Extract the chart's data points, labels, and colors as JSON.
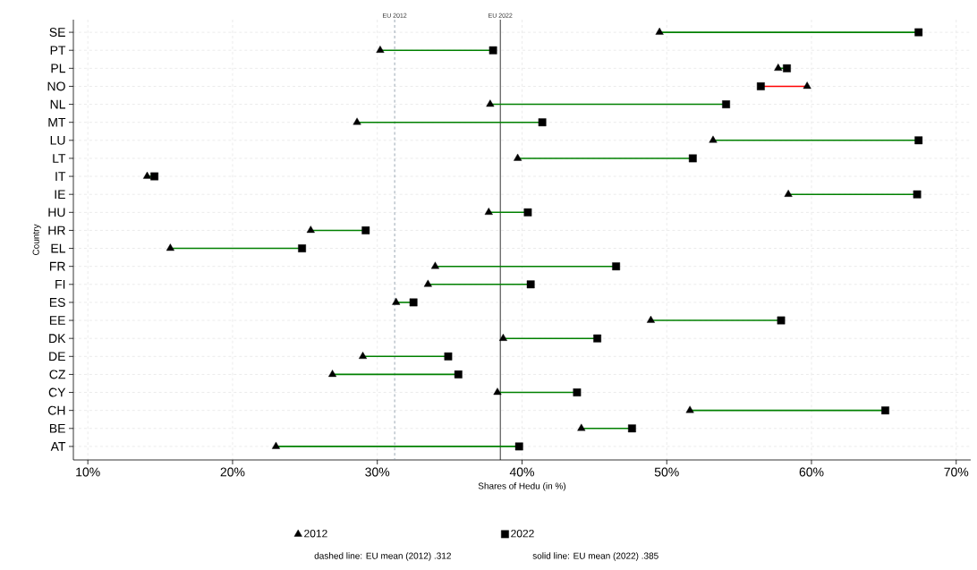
{
  "chart_data": {
    "type": "scatter",
    "orientation": "horizontal",
    "xlabel": "Shares of Hedu (in %)",
    "ylabel": "Country",
    "categories": [
      "SE",
      "PT",
      "PL",
      "NO",
      "NL",
      "MT",
      "LU",
      "LT",
      "IT",
      "IE",
      "HU",
      "HR",
      "EL",
      "FR",
      "FI",
      "ES",
      "EE",
      "DK",
      "DE",
      "CZ",
      "CY",
      "CH",
      "BE",
      "AT"
    ],
    "series": [
      {
        "name": "2012",
        "marker": "triangle",
        "color": "#000000",
        "values": [
          49.5,
          30.2,
          57.7,
          59.7,
          37.8,
          28.6,
          53.2,
          39.7,
          14.1,
          58.4,
          37.7,
          25.4,
          15.7,
          34.0,
          33.5,
          31.3,
          48.9,
          38.7,
          29.0,
          26.9,
          38.3,
          51.6,
          44.1,
          23.0
        ]
      },
      {
        "name": "2022",
        "marker": "square",
        "color": "#000000",
        "values": [
          67.4,
          38.0,
          58.3,
          56.5,
          54.1,
          41.4,
          67.4,
          51.8,
          14.6,
          67.3,
          40.4,
          29.2,
          24.8,
          46.5,
          40.6,
          32.5,
          57.9,
          45.2,
          34.9,
          35.6,
          43.8,
          65.1,
          47.6,
          39.8
        ]
      }
    ],
    "xlim": [
      9,
      71
    ],
    "xticks": [
      {
        "value": 10,
        "label": "10%"
      },
      {
        "value": 20,
        "label": "20%"
      },
      {
        "value": 30,
        "label": "30%"
      },
      {
        "value": 40,
        "label": "40%"
      },
      {
        "value": 50,
        "label": "50%"
      },
      {
        "value": 60,
        "label": "60%"
      },
      {
        "value": 70,
        "label": "70%"
      }
    ],
    "grid": true,
    "legend": "bottom",
    "ref_lines": [
      {
        "axis": "x",
        "value": 31.2,
        "label": "EU 2012",
        "color": "#8090a0",
        "line_style": "dashed"
      },
      {
        "axis": "x",
        "value": 38.5,
        "label": "EU 2022",
        "color": "#000000",
        "line_style": "solid"
      }
    ],
    "annotations": [
      "dashed line: EU mean (2012) .312",
      "solid line: EU mean (2022) .385"
    ]
  }
}
